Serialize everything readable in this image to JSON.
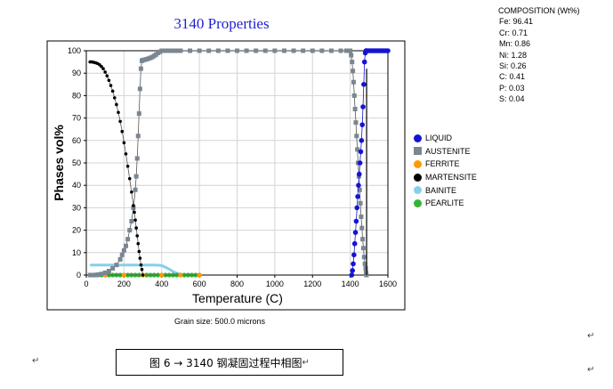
{
  "chart_data": {
    "type": "scatter",
    "title": "3140 Properties",
    "xlabel": "Temperature (C)",
    "ylabel": "Phases vol%",
    "xlim": [
      0,
      1600
    ],
    "ylim": [
      0,
      100
    ],
    "x_ticks": [
      0,
      200,
      400,
      600,
      800,
      1000,
      1200,
      1400,
      1600
    ],
    "y_ticks": [
      0,
      10,
      20,
      30,
      40,
      50,
      60,
      70,
      80,
      90,
      100
    ],
    "grid": true,
    "legend_position": "right",
    "series": [
      {
        "name": "LIQUID",
        "color": "#1414d4",
        "marker": "circle",
        "x": [
          1408,
          1412,
          1416,
          1420,
          1424,
          1428,
          1432,
          1436,
          1440,
          1444,
          1448,
          1452,
          1456,
          1460,
          1464,
          1468,
          1472,
          1476,
          1480,
          1484,
          1486,
          1490,
          1500,
          1510,
          1520,
          1530,
          1540,
          1550,
          1560,
          1570,
          1580,
          1590,
          1600
        ],
        "y": [
          0,
          2,
          5,
          9,
          14,
          19,
          24,
          30,
          35,
          40,
          45,
          50,
          55,
          60,
          67,
          75,
          85,
          95,
          99,
          100,
          100,
          100,
          100,
          100,
          100,
          100,
          100,
          100,
          100,
          100,
          100,
          100,
          100
        ]
      },
      {
        "name": "AUSTENITE",
        "color": "#7a8691",
        "marker": "square",
        "x": [
          20,
          40,
          60,
          80,
          100,
          120,
          140,
          160,
          180,
          190,
          200,
          210,
          220,
          230,
          240,
          250,
          260,
          265,
          270,
          275,
          280,
          285,
          290,
          295,
          300,
          310,
          320,
          330,
          340,
          350,
          360,
          370,
          380,
          390,
          400,
          420,
          440,
          460,
          480,
          500,
          550,
          600,
          650,
          700,
          750,
          800,
          850,
          900,
          950,
          1000,
          1050,
          1100,
          1150,
          1200,
          1250,
          1300,
          1350,
          1380,
          1400,
          1405,
          1410,
          1414,
          1418,
          1422,
          1426,
          1430,
          1434,
          1438,
          1442,
          1446,
          1450,
          1454,
          1458,
          1462,
          1466,
          1470,
          1474,
          1478,
          1482,
          1484,
          1486
        ],
        "y": [
          0,
          0,
          0.2,
          0.5,
          1,
          1.8,
          3,
          4.5,
          7,
          9,
          11,
          13,
          16,
          20,
          24,
          30,
          38,
          44,
          52,
          62,
          72,
          83,
          92,
          95.5,
          95.8,
          96,
          96.2,
          96.5,
          96.8,
          97.2,
          97.7,
          98.3,
          99,
          99.5,
          100,
          100,
          100,
          100,
          100,
          100,
          100,
          100,
          100,
          100,
          100,
          100,
          100,
          100,
          100,
          100,
          100,
          100,
          100,
          100,
          100,
          100,
          100,
          100,
          100,
          98,
          95,
          91,
          86,
          80,
          74,
          68,
          62,
          56,
          50,
          44,
          38,
          32,
          26,
          21,
          16,
          12,
          8,
          5,
          3,
          1,
          0
        ]
      },
      {
        "name": "FERRITE",
        "color": "#ff9900",
        "marker": "circle",
        "x": [
          20,
          100,
          200,
          300,
          400,
          500,
          600
        ],
        "y": [
          0,
          0,
          0,
          0,
          0,
          0,
          0
        ]
      },
      {
        "name": "MARTENSITE",
        "color": "#000000",
        "marker": "circle",
        "x": [
          20,
          30,
          40,
          50,
          60,
          70,
          80,
          90,
          100,
          110,
          120,
          130,
          140,
          150,
          160,
          170,
          180,
          190,
          200,
          210,
          220,
          230,
          240,
          250,
          255,
          260,
          265,
          270,
          275,
          280,
          285,
          290,
          295,
          300
        ],
        "y": [
          95,
          95,
          94.8,
          94.6,
          94.3,
          93.8,
          93,
          92,
          90.5,
          88.8,
          86.8,
          84.5,
          82,
          79,
          76,
          72.5,
          68.5,
          64,
          59,
          54,
          48.5,
          43,
          37,
          31,
          28,
          24.5,
          21,
          17.5,
          14,
          10.5,
          7.5,
          4.5,
          2.5,
          0
        ]
      },
      {
        "name": "BAINITE",
        "color": "#87ceeb",
        "marker": "line",
        "x": [
          20,
          100,
          200,
          300,
          350,
          380,
          400,
          420,
          440,
          460,
          480,
          500,
          520,
          540
        ],
        "y": [
          4.5,
          4.5,
          4.5,
          4.5,
          4.5,
          4.4,
          4.2,
          3.5,
          2.6,
          1.6,
          0.8,
          0.3,
          0.1,
          0
        ]
      },
      {
        "name": "PEARLITE",
        "color": "#33b533",
        "marker": "circle",
        "x": [
          20,
          40,
          60,
          80,
          100,
          120,
          140,
          160,
          180,
          200,
          220,
          240,
          260,
          280,
          300,
          320,
          340,
          360,
          380,
          400,
          420,
          440,
          460,
          480,
          500,
          520,
          540,
          560,
          580,
          600
        ],
        "y": [
          0,
          0,
          0,
          0,
          0,
          0,
          0,
          0,
          0,
          0,
          0,
          0,
          0,
          0,
          0,
          0,
          0,
          0,
          0,
          0,
          0,
          0,
          0,
          0,
          0,
          0,
          0,
          0,
          0,
          0
        ]
      }
    ],
    "vertical_lines": [
      {
        "x": 1487,
        "color": "#000000"
      }
    ]
  },
  "composition": {
    "header": "COMPOSITION (Wt%)",
    "items": [
      "Fe: 96.41",
      "Cr: 0.71",
      "Mn: 0.86",
      "Ni: 1.28",
      "Si: 0.26",
      "C: 0.41",
      "P: 0.03",
      "S: 0.04"
    ]
  },
  "grain_size": "Grain size: 500.0 microns",
  "caption": "图 6 → 3140 钢凝固过程中相图",
  "para_marks": {
    "right_a": "↵",
    "right_b": "↵",
    "left_a": "↵",
    "caption_end": "↵"
  }
}
